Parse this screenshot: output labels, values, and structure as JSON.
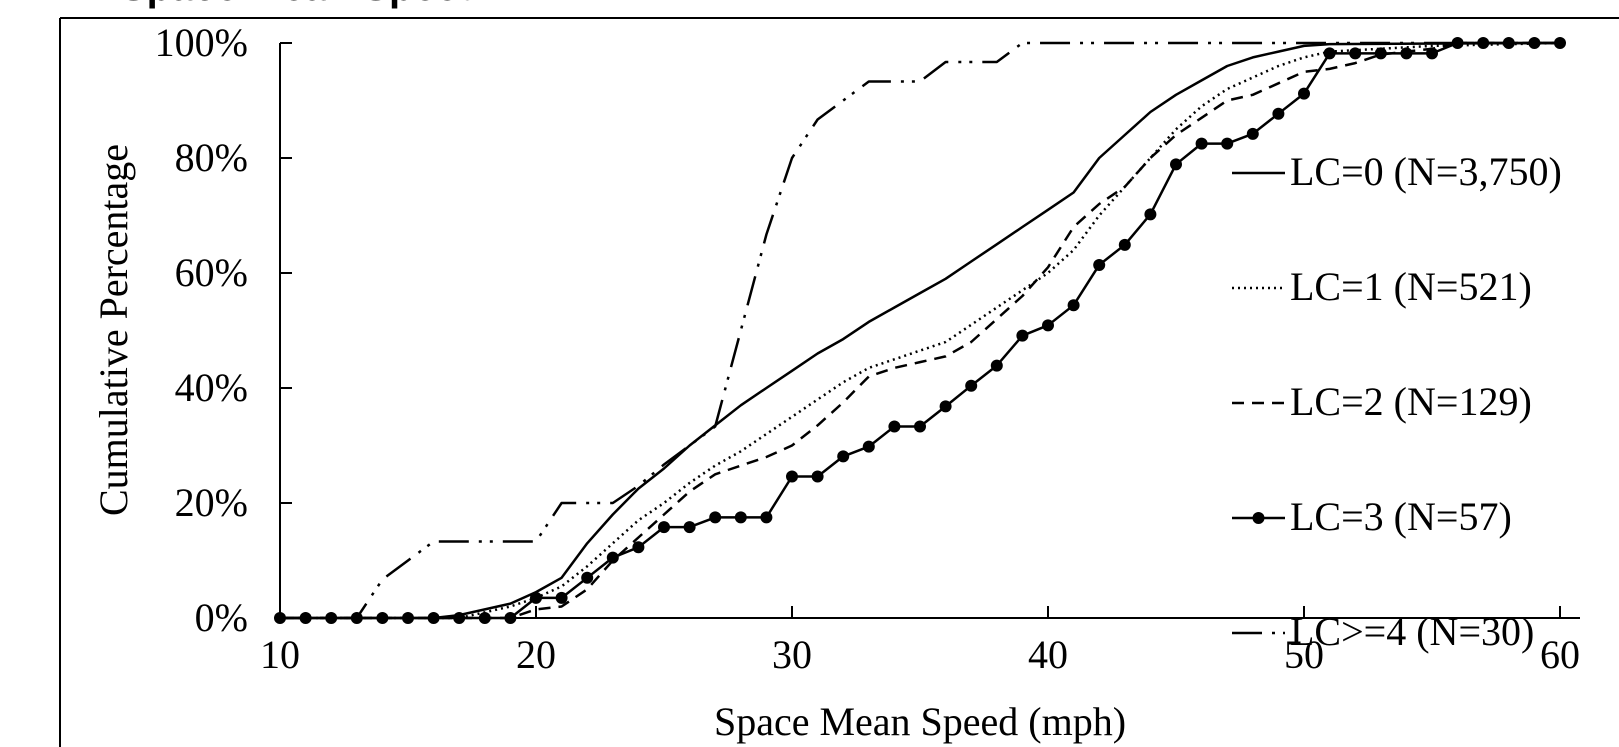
{
  "title_partial": "Space Mean Speed",
  "chart_data": {
    "type": "line",
    "xlabel": "Space Mean Speed (mph)",
    "ylabel": "Cumulative Percentage",
    "xlim": [
      10,
      60
    ],
    "ylim": [
      0,
      100
    ],
    "x_ticks": [
      "10",
      "20",
      "30",
      "40",
      "50",
      "60"
    ],
    "y_ticks": [
      "0%",
      "20%",
      "40%",
      "60%",
      "80%",
      "100%"
    ],
    "grid": false,
    "legend_position": "right",
    "series": [
      {
        "name": "LC=0 (N=3,750)",
        "style": "solid",
        "points": [
          [
            10,
            0
          ],
          [
            16,
            0
          ],
          [
            17,
            0.5
          ],
          [
            18,
            1.5
          ],
          [
            19,
            2.5
          ],
          [
            20,
            4.5
          ],
          [
            21,
            7
          ],
          [
            22,
            13
          ],
          [
            23,
            18
          ],
          [
            24,
            22.5
          ],
          [
            25,
            26
          ],
          [
            26,
            30
          ],
          [
            27,
            33.5
          ],
          [
            28,
            37
          ],
          [
            29,
            40
          ],
          [
            30,
            43
          ],
          [
            31,
            46
          ],
          [
            32,
            48.5
          ],
          [
            33,
            51.5
          ],
          [
            34,
            54
          ],
          [
            35,
            56.5
          ],
          [
            36,
            59
          ],
          [
            37,
            62
          ],
          [
            38,
            65
          ],
          [
            39,
            68
          ],
          [
            40,
            71
          ],
          [
            41,
            74
          ],
          [
            42,
            80
          ],
          [
            43,
            84
          ],
          [
            44,
            88
          ],
          [
            45,
            91
          ],
          [
            46,
            93.5
          ],
          [
            47,
            96
          ],
          [
            48,
            97.5
          ],
          [
            49,
            98.5
          ],
          [
            50,
            99.5
          ],
          [
            51,
            99.8
          ],
          [
            60,
            100
          ]
        ]
      },
      {
        "name": "LC=1 (N=521)",
        "style": "dotted",
        "points": [
          [
            10,
            0
          ],
          [
            17,
            0
          ],
          [
            18,
            1
          ],
          [
            19,
            2
          ],
          [
            20,
            3.5
          ],
          [
            21,
            5.5
          ],
          [
            22,
            9
          ],
          [
            23,
            13
          ],
          [
            24,
            17
          ],
          [
            25,
            20
          ],
          [
            26,
            23.5
          ],
          [
            27,
            26.5
          ],
          [
            28,
            29
          ],
          [
            29,
            32
          ],
          [
            30,
            35
          ],
          [
            31,
            38
          ],
          [
            32,
            41
          ],
          [
            33,
            43.5
          ],
          [
            34,
            45
          ],
          [
            35,
            46.5
          ],
          [
            36,
            48
          ],
          [
            37,
            51
          ],
          [
            38,
            54
          ],
          [
            39,
            57
          ],
          [
            40,
            60
          ],
          [
            41,
            64
          ],
          [
            42,
            70
          ],
          [
            43,
            75
          ],
          [
            44,
            80
          ],
          [
            45,
            85
          ],
          [
            46,
            89
          ],
          [
            47,
            92
          ],
          [
            48,
            94
          ],
          [
            49,
            96
          ],
          [
            50,
            97.5
          ],
          [
            51,
            98.5
          ],
          [
            55,
            99.5
          ],
          [
            60,
            100
          ]
        ]
      },
      {
        "name": "LC=2 (N=129)",
        "style": "dashed",
        "points": [
          [
            10,
            0
          ],
          [
            19,
            0
          ],
          [
            20,
            1.5
          ],
          [
            21,
            2
          ],
          [
            22,
            5
          ],
          [
            23,
            10
          ],
          [
            24,
            14
          ],
          [
            25,
            18
          ],
          [
            26,
            22
          ],
          [
            27,
            25
          ],
          [
            28,
            26.5
          ],
          [
            29,
            28
          ],
          [
            30,
            30
          ],
          [
            31,
            33.5
          ],
          [
            32,
            37.5
          ],
          [
            33,
            42
          ],
          [
            34,
            43.5
          ],
          [
            35,
            44.5
          ],
          [
            36,
            45.5
          ],
          [
            37,
            48
          ],
          [
            38,
            52
          ],
          [
            39,
            56
          ],
          [
            40,
            61
          ],
          [
            41,
            68
          ],
          [
            42,
            72
          ],
          [
            43,
            75
          ],
          [
            44,
            80
          ],
          [
            45,
            84
          ],
          [
            46,
            87
          ],
          [
            47,
            90
          ],
          [
            48,
            91
          ],
          [
            49,
            93
          ],
          [
            50,
            95
          ],
          [
            51,
            95.5
          ],
          [
            52,
            96.5
          ],
          [
            53,
            98
          ],
          [
            54,
            98.5
          ],
          [
            55,
            99
          ],
          [
            56,
            100
          ],
          [
            60,
            100
          ]
        ]
      },
      {
        "name": "LC=3 (N=57)",
        "style": "solid-markers",
        "points": [
          [
            10,
            0
          ],
          [
            11,
            0
          ],
          [
            12,
            0
          ],
          [
            13,
            0
          ],
          [
            14,
            0
          ],
          [
            15,
            0
          ],
          [
            16,
            0
          ],
          [
            17,
            0
          ],
          [
            18,
            0
          ],
          [
            19,
            0
          ],
          [
            20,
            3.5
          ],
          [
            21,
            3.5
          ],
          [
            22,
            7
          ],
          [
            23,
            10.5
          ],
          [
            24,
            12.3
          ],
          [
            25,
            15.8
          ],
          [
            26,
            15.8
          ],
          [
            27,
            17.5
          ],
          [
            28,
            17.5
          ],
          [
            29,
            17.5
          ],
          [
            30,
            24.6
          ],
          [
            31,
            24.6
          ],
          [
            32,
            28.1
          ],
          [
            33,
            29.8
          ],
          [
            34,
            33.3
          ],
          [
            35,
            33.3
          ],
          [
            36,
            36.8
          ],
          [
            37,
            40.4
          ],
          [
            38,
            43.9
          ],
          [
            39,
            49.1
          ],
          [
            40,
            50.9
          ],
          [
            41,
            54.4
          ],
          [
            42,
            61.4
          ],
          [
            43,
            64.9
          ],
          [
            44,
            70.2
          ],
          [
            45,
            78.9
          ],
          [
            46,
            82.5
          ],
          [
            47,
            82.5
          ],
          [
            48,
            84.2
          ],
          [
            49,
            87.7
          ],
          [
            50,
            91.2
          ],
          [
            51,
            98.2
          ],
          [
            52,
            98.2
          ],
          [
            53,
            98.2
          ],
          [
            54,
            98.2
          ],
          [
            55,
            98.2
          ],
          [
            56,
            100
          ],
          [
            57,
            100
          ],
          [
            58,
            100
          ],
          [
            59,
            100
          ],
          [
            60,
            100
          ]
        ]
      },
      {
        "name": "LC>=4 (N=30)",
        "style": "dash-dot-dot",
        "points": [
          [
            10,
            0
          ],
          [
            13,
            0
          ],
          [
            14,
            6.7
          ],
          [
            15,
            10
          ],
          [
            16,
            13.3
          ],
          [
            17,
            13.3
          ],
          [
            18,
            13.3
          ],
          [
            19,
            13.3
          ],
          [
            20,
            13.3
          ],
          [
            21,
            20
          ],
          [
            22,
            20
          ],
          [
            23,
            20
          ],
          [
            24,
            23
          ],
          [
            25,
            26.7
          ],
          [
            26,
            30
          ],
          [
            27,
            33.3
          ],
          [
            28,
            50
          ],
          [
            29,
            66.7
          ],
          [
            30,
            80
          ],
          [
            31,
            86.7
          ],
          [
            32,
            90
          ],
          [
            33,
            93.3
          ],
          [
            34,
            93.3
          ],
          [
            35,
            93.3
          ],
          [
            36,
            96.7
          ],
          [
            37,
            96.7
          ],
          [
            38,
            96.7
          ],
          [
            39,
            100
          ],
          [
            60,
            100
          ]
        ]
      }
    ]
  }
}
